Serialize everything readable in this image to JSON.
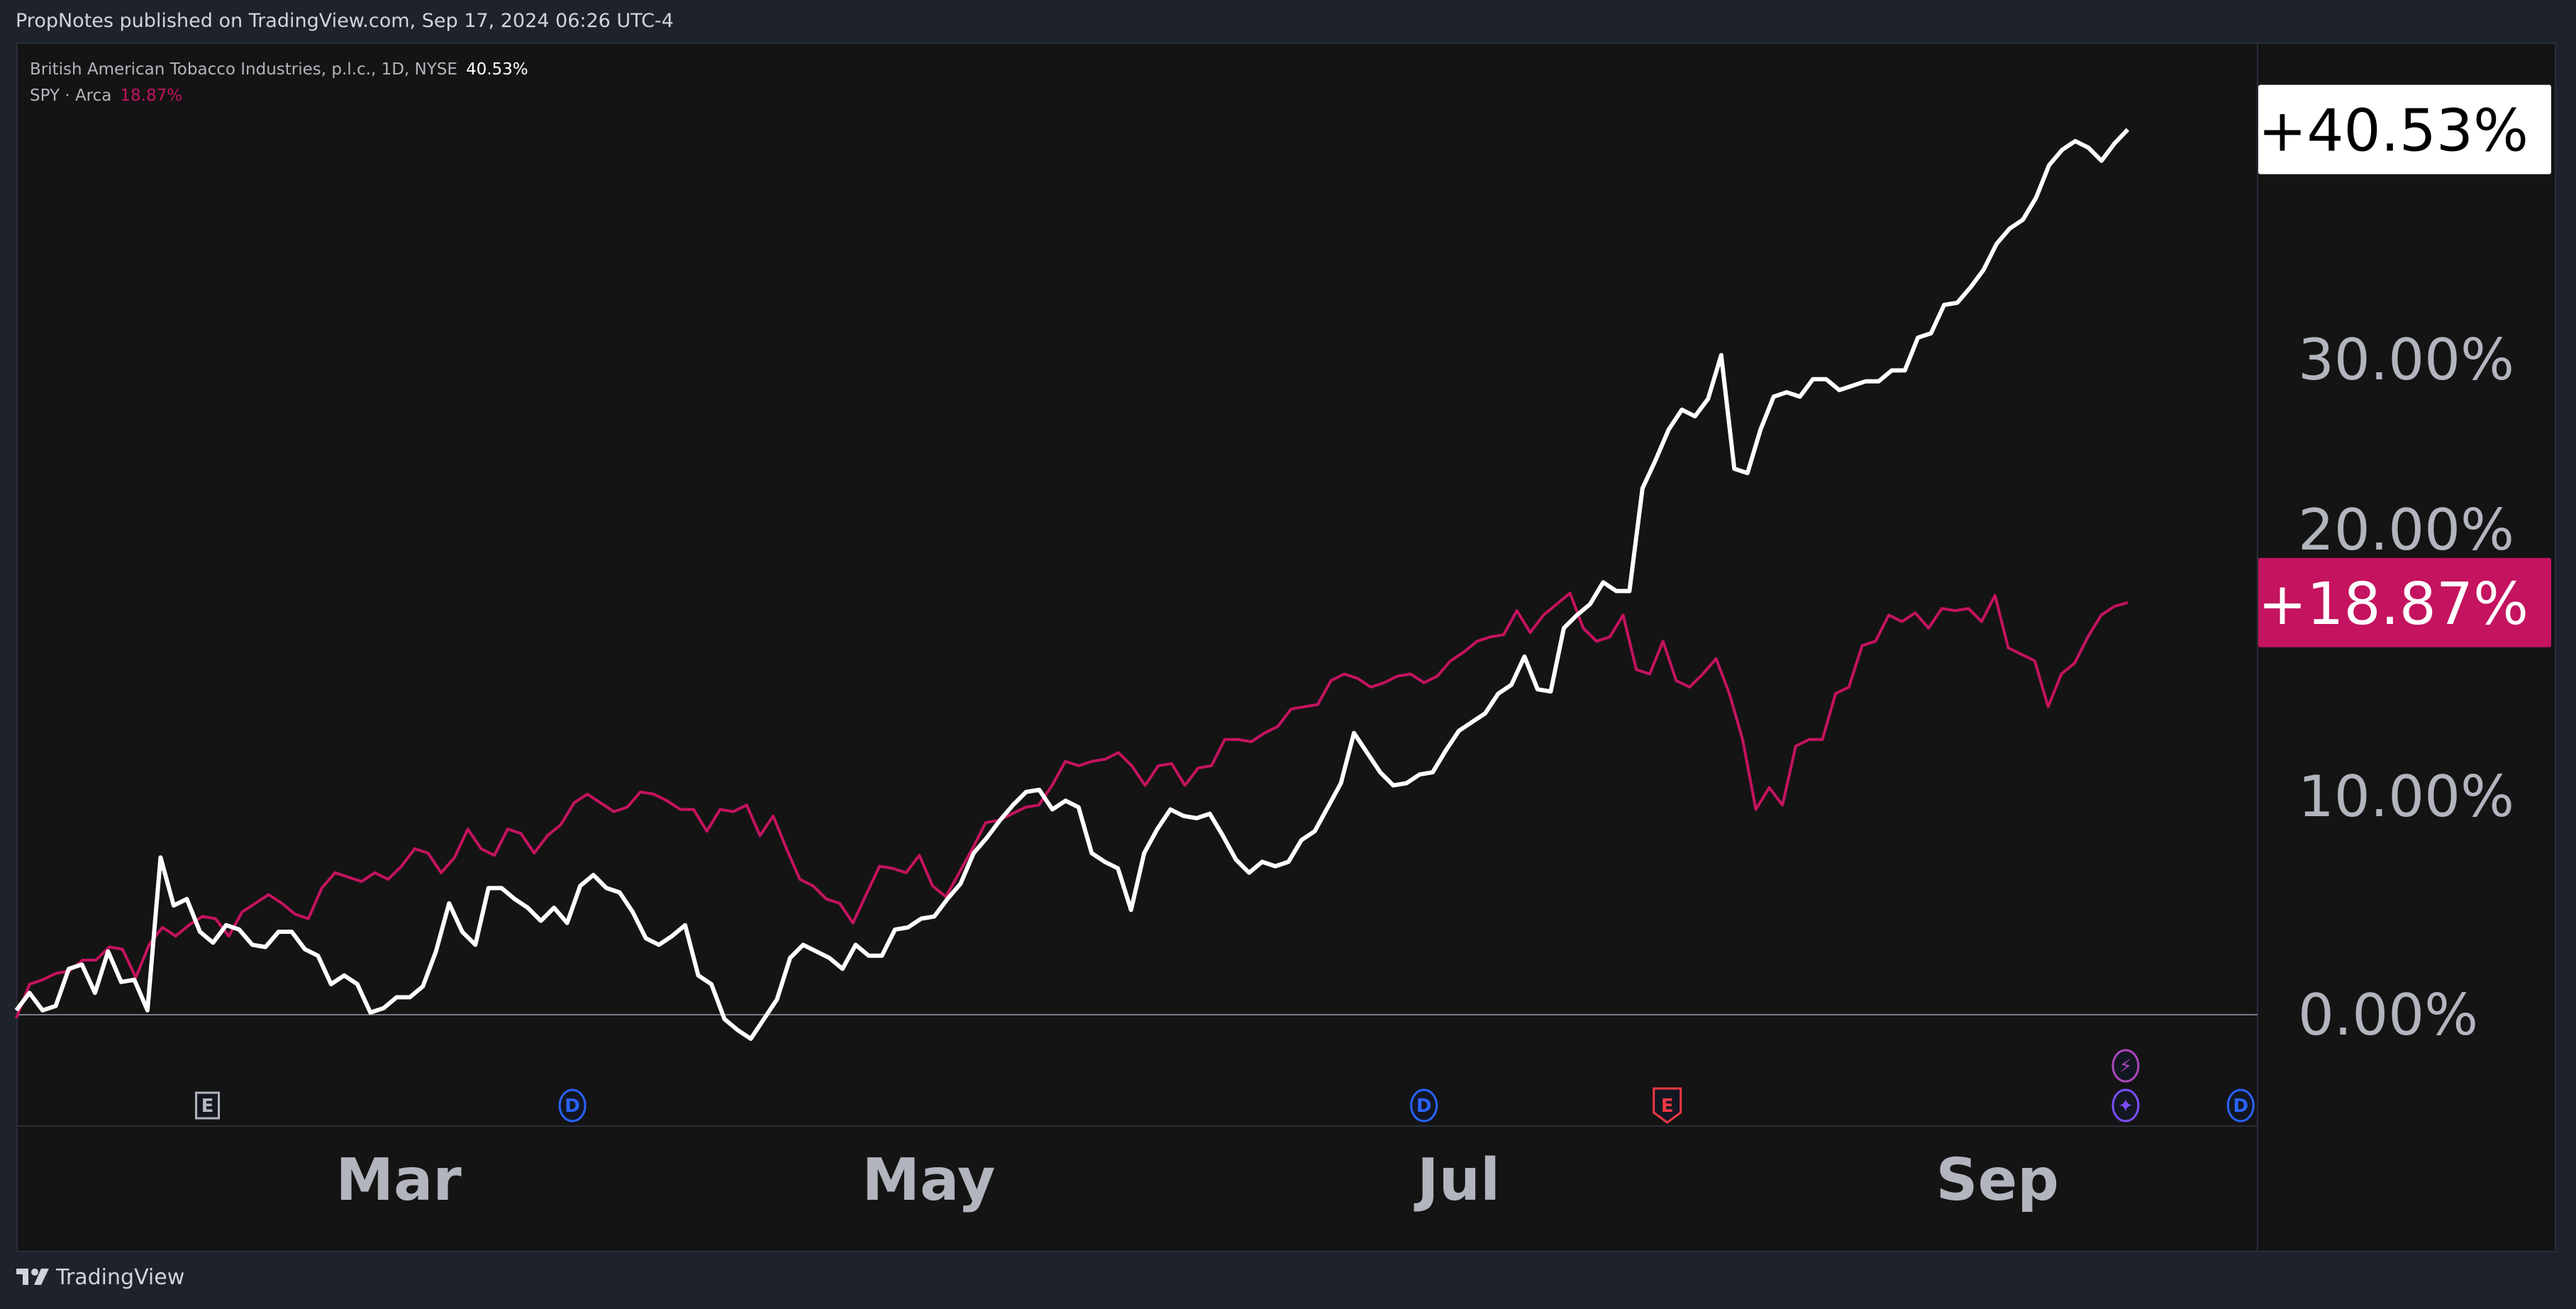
{
  "header": {
    "published_text": "PropNotes published on TradingView.com, Sep 17, 2024 06:26 UTC-4"
  },
  "legend": [
    {
      "label": "British American Tobacco Industries, p.l.c., 1D, NYSE",
      "value": "40.53%"
    },
    {
      "label": "SPY · Arca",
      "value": "18.87%"
    }
  ],
  "footer": {
    "brand": "TradingView",
    "logo_icon": "tradingview-logo-icon"
  },
  "colors": {
    "bti": "#ffffff",
    "spy": "#c4135f",
    "background": "#141414",
    "frame": "#1e222d",
    "axis_text": "#b2b5be"
  },
  "chart_data": {
    "type": "line",
    "title": "",
    "xlabel": "",
    "ylabel": "",
    "x_range": [
      "2024-01-17",
      "2024-09-16"
    ],
    "ylim": [
      -5,
      44
    ],
    "y_ticks": [
      "0.00%",
      "10.00%",
      "20.00%",
      "30.00%"
    ],
    "y_tick_values": [
      0,
      10,
      20,
      30
    ],
    "x_ticks": [
      {
        "label": "Mar",
        "date": "2024-03-01"
      },
      {
        "label": "May",
        "date": "2024-05-01"
      },
      {
        "label": "Jul",
        "date": "2024-07-01"
      },
      {
        "label": "Sep",
        "date": "2024-09-01"
      }
    ],
    "grid": false,
    "series": [
      {
        "name": "British American Tobacco Industries, p.l.c., 1D, NYSE",
        "last_label": "+40.53%",
        "values": [
          0.2,
          1.0,
          0.2,
          0.4,
          2.1,
          2.3,
          1.0,
          2.9,
          1.5,
          1.6,
          0.2,
          7.2,
          5.0,
          5.3,
          3.8,
          3.3,
          4.1,
          3.9,
          3.2,
          3.1,
          3.8,
          3.8,
          3.0,
          2.7,
          1.4,
          1.8,
          1.4,
          0.1,
          0.3,
          0.8,
          0.8,
          1.3,
          2.9,
          5.1,
          3.8,
          3.2,
          5.8,
          5.8,
          5.3,
          4.9,
          4.3,
          4.9,
          4.2,
          5.9,
          6.4,
          5.8,
          5.6,
          4.7,
          3.5,
          3.2,
          3.6,
          4.1,
          1.8,
          1.4,
          -0.2,
          -0.7,
          -1.1,
          -0.2,
          0.7,
          2.6,
          3.2,
          2.9,
          2.6,
          2.1,
          3.2,
          2.7,
          2.7,
          3.9,
          4.0,
          4.4,
          4.5,
          5.3,
          6.0,
          7.4,
          8.1,
          8.9,
          9.6,
          10.2,
          10.3,
          9.4,
          9.8,
          9.5,
          7.4,
          7.0,
          6.7,
          4.8,
          7.4,
          8.5,
          9.4,
          9.1,
          9.0,
          9.2,
          8.2,
          7.1,
          6.5,
          7.0,
          6.8,
          7.0,
          8.0,
          8.4,
          9.5,
          10.6,
          12.9,
          12.0,
          11.1,
          10.5,
          10.6,
          11.0,
          11.1,
          12.1,
          13.0,
          13.4,
          13.8,
          14.7,
          15.1,
          16.4,
          14.9,
          14.8,
          17.7,
          18.3,
          18.8,
          19.8,
          19.4,
          19.4,
          24.1,
          25.4,
          26.8,
          27.7,
          27.4,
          28.2,
          30.2,
          25.0,
          24.8,
          26.8,
          28.3,
          28.5,
          28.3,
          29.1,
          29.1,
          28.6,
          28.8,
          29.0,
          29.0,
          29.5,
          29.5,
          31.0,
          31.2,
          32.5,
          32.6,
          33.3,
          34.1,
          35.3,
          36.0,
          36.4,
          37.4,
          38.9,
          39.6,
          40.0,
          39.7,
          39.1,
          39.9,
          40.53
        ]
      },
      {
        "name": "SPY · Arca",
        "last_label": "+18.87%",
        "values": [
          -0.15,
          1.4,
          1.6,
          1.9,
          2.0,
          2.5,
          2.5,
          3.1,
          3.0,
          1.7,
          3.2,
          4.0,
          3.6,
          4.1,
          4.5,
          4.4,
          3.6,
          4.7,
          5.1,
          5.5,
          5.1,
          4.6,
          4.4,
          5.8,
          6.5,
          6.3,
          6.1,
          6.5,
          6.2,
          6.8,
          7.6,
          7.4,
          6.5,
          7.2,
          8.5,
          7.6,
          7.3,
          8.5,
          8.3,
          7.4,
          8.2,
          8.7,
          9.7,
          10.1,
          9.7,
          9.3,
          9.5,
          10.2,
          10.1,
          9.8,
          9.4,
          9.4,
          8.4,
          9.4,
          9.3,
          9.6,
          8.2,
          9.1,
          7.6,
          6.2,
          5.9,
          5.3,
          5.1,
          4.2,
          5.5,
          6.8,
          6.7,
          6.5,
          7.3,
          5.9,
          5.4,
          6.5,
          7.6,
          8.8,
          8.9,
          9.2,
          9.5,
          9.6,
          10.5,
          11.6,
          11.4,
          11.6,
          11.7,
          12.0,
          11.4,
          10.5,
          11.4,
          11.5,
          10.5,
          11.3,
          11.4,
          12.6,
          12.6,
          12.5,
          12.9,
          13.2,
          14.0,
          14.1,
          14.2,
          15.3,
          15.6,
          15.4,
          15.0,
          15.2,
          15.5,
          15.6,
          15.2,
          15.5,
          16.2,
          16.6,
          17.1,
          17.3,
          17.4,
          18.5,
          17.5,
          18.3,
          18.8,
          19.3,
          17.7,
          17.1,
          17.3,
          18.3,
          15.8,
          15.6,
          17.1,
          15.3,
          15.0,
          15.6,
          16.3,
          14.7,
          12.6,
          9.4,
          10.4,
          9.6,
          12.3,
          12.6,
          12.6,
          14.7,
          15.0,
          16.9,
          17.1,
          18.3,
          18.0,
          18.4,
          17.7,
          18.6,
          18.5,
          18.6,
          18.0,
          19.2,
          16.8,
          16.5,
          16.2,
          14.1,
          15.6,
          16.1,
          17.3,
          18.3,
          18.7,
          18.87
        ]
      }
    ],
    "event_markers": [
      {
        "label": "E",
        "date": "2024-02-08",
        "kind": "earnings",
        "color": "#b2b5be"
      },
      {
        "label": "D",
        "date": "2024-03-21",
        "kind": "dividend",
        "color": "#2962ff"
      },
      {
        "label": "D",
        "date": "2024-06-27",
        "kind": "dividend",
        "color": "#2962ff"
      },
      {
        "label": "E",
        "date": "2024-07-25",
        "kind": "earnings",
        "color": "#f23645"
      },
      {
        "label": "⚡",
        "date": "2024-09-16",
        "kind": "split-icon",
        "color": "#ab47bc"
      },
      {
        "label": "✦",
        "date": "2024-09-16",
        "kind": "ideas-icon",
        "color": "#7c4dff"
      },
      {
        "label": "D",
        "date": "2024-09-29",
        "kind": "dividend",
        "color": "#2962ff"
      }
    ]
  }
}
